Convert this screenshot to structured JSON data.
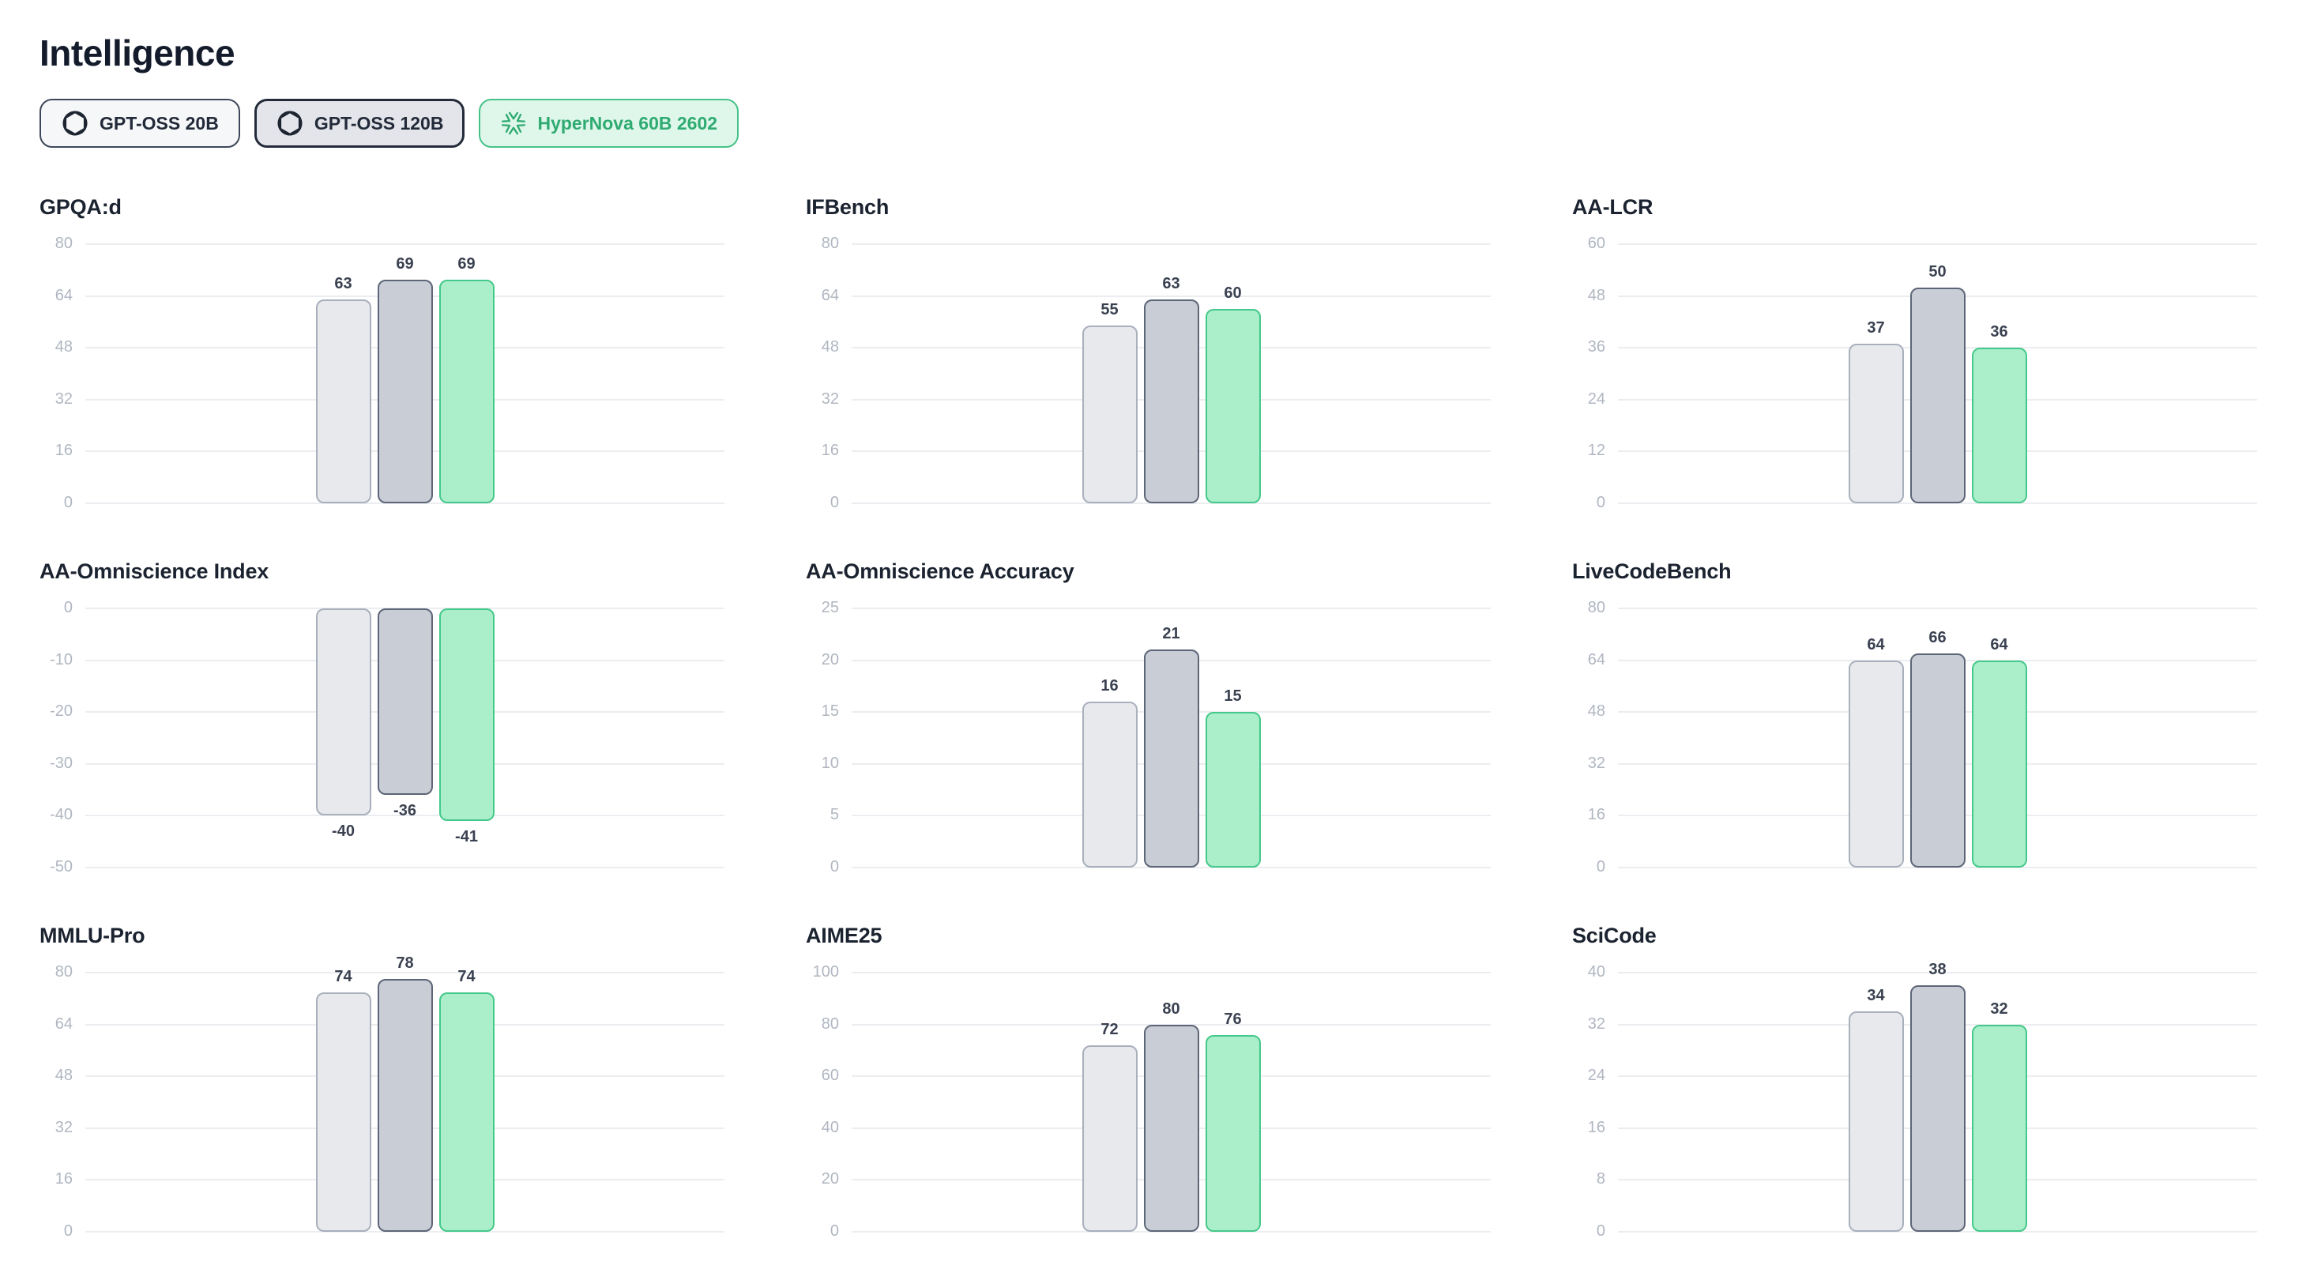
{
  "page": {
    "title": "Intelligence"
  },
  "models": [
    {
      "label": "GPT-OSS 20B",
      "icon": "openai-logo",
      "bar_fill": "#e7e9ed",
      "bar_stroke": "#a9b0bc",
      "chip_bg": "#f6f7f9",
      "chip_border": "#3e4759",
      "chip_text": "#222a39"
    },
    {
      "label": "GPT-OSS 120B",
      "icon": "openai-logo",
      "bar_fill": "#c9cdd5",
      "bar_stroke": "#5d6678",
      "chip_bg": "#e3e5ea",
      "chip_border": "#232b3a",
      "chip_text": "#222a39"
    },
    {
      "label": "HyperNova 60B 2602",
      "icon": "hypernova-snowflake",
      "bar_fill": "#abeeca",
      "bar_stroke": "#45c98a",
      "chip_bg": "#dff7ea",
      "chip_border": "#46c289",
      "chip_text": "#2fab72"
    }
  ],
  "colors": {
    "page_bg": "#ffffff",
    "heading_text": "#141c2c",
    "chart_title_text": "#1b2330",
    "tick_label_text": "#b0b6c1",
    "value_label_text": "#3a4150",
    "gridline": "#ebedf0",
    "accent_green": "#45c98a"
  },
  "chart_data": [
    {
      "type": "bar",
      "title": "GPQA:d",
      "categories": [
        "GPT-OSS 20B",
        "GPT-OSS 120B",
        "HyperNova 60B 2602"
      ],
      "values": [
        63,
        69,
        69
      ],
      "ylim": [
        0,
        80
      ],
      "yticks": [
        0,
        16,
        32,
        48,
        64,
        80
      ],
      "grid": true,
      "legend": "none"
    },
    {
      "type": "bar",
      "title": "IFBench",
      "categories": [
        "GPT-OSS 20B",
        "GPT-OSS 120B",
        "HyperNova 60B 2602"
      ],
      "values": [
        55,
        63,
        60
      ],
      "ylim": [
        0,
        80
      ],
      "yticks": [
        0,
        16,
        32,
        48,
        64,
        80
      ],
      "grid": true,
      "legend": "none"
    },
    {
      "type": "bar",
      "title": "AA-LCR",
      "categories": [
        "GPT-OSS 20B",
        "GPT-OSS 120B",
        "HyperNova 60B 2602"
      ],
      "values": [
        37,
        50,
        36
      ],
      "ylim": [
        0,
        60
      ],
      "yticks": [
        0,
        12,
        24,
        36,
        48,
        60
      ],
      "grid": true,
      "legend": "none"
    },
    {
      "type": "bar",
      "title": "AA-Omniscience Index",
      "categories": [
        "GPT-OSS 20B",
        "GPT-OSS 120B",
        "HyperNova 60B 2602"
      ],
      "values": [
        -40,
        -36,
        -41
      ],
      "ylim": [
        -50,
        0
      ],
      "yticks": [
        0,
        -10,
        -20,
        -30,
        -40,
        -50
      ],
      "grid": true,
      "legend": "none"
    },
    {
      "type": "bar",
      "title": "AA-Omniscience Accuracy",
      "categories": [
        "GPT-OSS 20B",
        "GPT-OSS 120B",
        "HyperNova 60B 2602"
      ],
      "values": [
        16,
        21,
        15
      ],
      "ylim": [
        0,
        25
      ],
      "yticks": [
        0,
        5,
        10,
        15,
        20,
        25
      ],
      "grid": true,
      "legend": "none"
    },
    {
      "type": "bar",
      "title": "LiveCodeBench",
      "categories": [
        "GPT-OSS 20B",
        "GPT-OSS 120B",
        "HyperNova 60B 2602"
      ],
      "values": [
        64,
        66,
        64
      ],
      "ylim": [
        0,
        80
      ],
      "yticks": [
        0,
        16,
        32,
        48,
        64,
        80
      ],
      "grid": true,
      "legend": "none"
    },
    {
      "type": "bar",
      "title": "MMLU-Pro",
      "categories": [
        "GPT-OSS 20B",
        "GPT-OSS 120B",
        "HyperNova 60B 2602"
      ],
      "values": [
        74,
        78,
        74
      ],
      "ylim": [
        0,
        80
      ],
      "yticks": [
        0,
        16,
        32,
        48,
        64,
        80
      ],
      "grid": true,
      "legend": "none"
    },
    {
      "type": "bar",
      "title": "AIME25",
      "categories": [
        "GPT-OSS 20B",
        "GPT-OSS 120B",
        "HyperNova 60B 2602"
      ],
      "values": [
        72,
        80,
        76
      ],
      "ylim": [
        0,
        100
      ],
      "yticks": [
        0,
        20,
        40,
        60,
        80,
        100
      ],
      "grid": true,
      "legend": "none"
    },
    {
      "type": "bar",
      "title": "SciCode",
      "categories": [
        "GPT-OSS 20B",
        "GPT-OSS 120B",
        "HyperNova 60B 2602"
      ],
      "values": [
        34,
        38,
        32
      ],
      "ylim": [
        0,
        40
      ],
      "yticks": [
        0,
        8,
        16,
        24,
        32,
        40
      ],
      "grid": true,
      "legend": "none"
    }
  ]
}
